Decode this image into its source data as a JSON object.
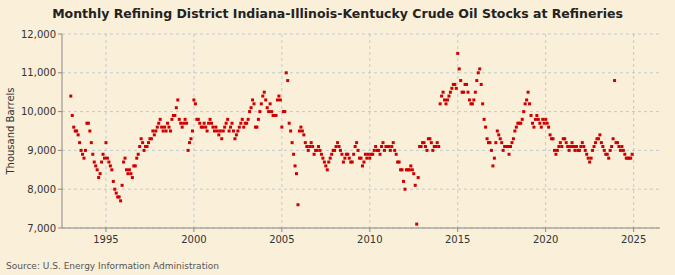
{
  "chart_data": {
    "type": "scatter",
    "title": "Monthly Refining District Indiana-Illinois-Kentucky Crude Oil Stocks at Refineries",
    "y_label": "Thousand Barrels",
    "source": "Source: U.S. Energy Information Administration",
    "xlim": [
      1992.5,
      2026.5
    ],
    "ylim": [
      7000,
      12000
    ],
    "xticks": [
      1995,
      2000,
      2005,
      2010,
      2015,
      2020,
      2025
    ],
    "yticks": [
      {
        "value": 7000,
        "label": "7,000"
      },
      {
        "value": 8000,
        "label": "8,000"
      },
      {
        "value": 9000,
        "label": "9,000"
      },
      {
        "value": 10000,
        "label": "10,000"
      },
      {
        "value": 11000,
        "label": "11,000"
      },
      {
        "value": 12000,
        "label": "12,000"
      }
    ],
    "grid": true,
    "color": "#cc0000",
    "marker": "square",
    "x": [
      1993.0,
      1993.083,
      1993.167,
      1993.25,
      1993.333,
      1993.417,
      1993.5,
      1993.583,
      1993.667,
      1993.75,
      1993.833,
      1993.917,
      1994.0,
      1994.083,
      1994.167,
      1994.25,
      1994.333,
      1994.417,
      1994.5,
      1994.583,
      1994.667,
      1994.75,
      1994.833,
      1994.917,
      1995.0,
      1995.083,
      1995.167,
      1995.25,
      1995.333,
      1995.417,
      1995.5,
      1995.583,
      1995.667,
      1995.75,
      1995.833,
      1995.917,
      1996.0,
      1996.083,
      1996.167,
      1996.25,
      1996.333,
      1996.417,
      1996.5,
      1996.583,
      1996.667,
      1996.75,
      1996.833,
      1996.917,
      1997.0,
      1997.083,
      1997.167,
      1997.25,
      1997.333,
      1997.417,
      1997.5,
      1997.583,
      1997.667,
      1997.75,
      1997.833,
      1997.917,
      1998.0,
      1998.083,
      1998.167,
      1998.25,
      1998.333,
      1998.417,
      1998.5,
      1998.583,
      1998.667,
      1998.75,
      1998.833,
      1998.917,
      1999.0,
      1999.083,
      1999.167,
      1999.25,
      1999.333,
      1999.417,
      1999.5,
      1999.583,
      1999.667,
      1999.75,
      1999.833,
      1999.917,
      2000.0,
      2000.083,
      2000.167,
      2000.25,
      2000.333,
      2000.417,
      2000.5,
      2000.583,
      2000.667,
      2000.75,
      2000.833,
      2000.917,
      2001.0,
      2001.083,
      2001.167,
      2001.25,
      2001.333,
      2001.417,
      2001.5,
      2001.583,
      2001.667,
      2001.75,
      2001.833,
      2001.917,
      2002.0,
      2002.083,
      2002.167,
      2002.25,
      2002.333,
      2002.417,
      2002.5,
      2002.583,
      2002.667,
      2002.75,
      2002.833,
      2002.917,
      2003.0,
      2003.083,
      2003.167,
      2003.25,
      2003.333,
      2003.417,
      2003.5,
      2003.583,
      2003.667,
      2003.75,
      2003.833,
      2003.917,
      2004.0,
      2004.083,
      2004.167,
      2004.25,
      2004.333,
      2004.417,
      2004.5,
      2004.583,
      2004.667,
      2004.75,
      2004.833,
      2004.917,
      2005.0,
      2005.083,
      2005.167,
      2005.25,
      2005.333,
      2005.417,
      2005.5,
      2005.583,
      2005.667,
      2005.75,
      2005.833,
      2005.917,
      2006.0,
      2006.083,
      2006.167,
      2006.25,
      2006.333,
      2006.417,
      2006.5,
      2006.583,
      2006.667,
      2006.75,
      2006.833,
      2006.917,
      2007.0,
      2007.083,
      2007.167,
      2007.25,
      2007.333,
      2007.417,
      2007.5,
      2007.583,
      2007.667,
      2007.75,
      2007.833,
      2007.917,
      2008.0,
      2008.083,
      2008.167,
      2008.25,
      2008.333,
      2008.417,
      2008.5,
      2008.583,
      2008.667,
      2008.75,
      2008.833,
      2008.917,
      2009.0,
      2009.083,
      2009.167,
      2009.25,
      2009.333,
      2009.417,
      2009.5,
      2009.583,
      2009.667,
      2009.75,
      2009.833,
      2009.917,
      2010.0,
      2010.083,
      2010.167,
      2010.25,
      2010.333,
      2010.417,
      2010.5,
      2010.583,
      2010.667,
      2010.75,
      2010.833,
      2010.917,
      2011.0,
      2011.083,
      2011.167,
      2011.25,
      2011.333,
      2011.417,
      2011.5,
      2011.583,
      2011.667,
      2011.75,
      2011.833,
      2011.917,
      2012.0,
      2012.083,
      2012.167,
      2012.25,
      2012.333,
      2012.417,
      2012.5,
      2012.583,
      2012.667,
      2012.75,
      2012.833,
      2012.917,
      2013.0,
      2013.083,
      2013.167,
      2013.25,
      2013.333,
      2013.417,
      2013.5,
      2013.583,
      2013.667,
      2013.75,
      2013.833,
      2013.917,
      2014.0,
      2014.083,
      2014.167,
      2014.25,
      2014.333,
      2014.417,
      2014.5,
      2014.583,
      2014.667,
      2014.75,
      2014.833,
      2014.917,
      2015.0,
      2015.083,
      2015.167,
      2015.25,
      2015.333,
      2015.417,
      2015.5,
      2015.583,
      2015.667,
      2015.75,
      2015.833,
      2015.917,
      2016.0,
      2016.083,
      2016.167,
      2016.25,
      2016.333,
      2016.417,
      2016.5,
      2016.583,
      2016.667,
      2016.75,
      2016.833,
      2016.917,
      2017.0,
      2017.083,
      2017.167,
      2017.25,
      2017.333,
      2017.417,
      2017.5,
      2017.583,
      2017.667,
      2017.75,
      2017.833,
      2017.917,
      2018.0,
      2018.083,
      2018.167,
      2018.25,
      2018.333,
      2018.417,
      2018.5,
      2018.583,
      2018.667,
      2018.75,
      2018.833,
      2018.917,
      2019.0,
      2019.083,
      2019.167,
      2019.25,
      2019.333,
      2019.417,
      2019.5,
      2019.583,
      2019.667,
      2019.75,
      2019.833,
      2019.917,
      2020.0,
      2020.083,
      2020.167,
      2020.25,
      2020.333,
      2020.417,
      2020.5,
      2020.583,
      2020.667,
      2020.75,
      2020.833,
      2020.917,
      2021.0,
      2021.083,
      2021.167,
      2021.25,
      2021.333,
      2021.417,
      2021.5,
      2021.583,
      2021.667,
      2021.75,
      2021.833,
      2021.917,
      2022.0,
      2022.083,
      2022.167,
      2022.25,
      2022.333,
      2022.417,
      2022.5,
      2022.583,
      2022.667,
      2022.75,
      2022.833,
      2022.917,
      2023.0,
      2023.083,
      2023.167,
      2023.25,
      2023.333,
      2023.417,
      2023.5,
      2023.583,
      2023.667,
      2023.75,
      2023.833,
      2023.917,
      2024.0,
      2024.083,
      2024.167,
      2024.25,
      2024.333,
      2024.417,
      2024.5,
      2024.583,
      2024.667,
      2024.75,
      2024.833,
      2024.917
    ],
    "values": [
      10400,
      9900,
      9600,
      9500,
      9500,
      9400,
      9200,
      9000,
      8900,
      8800,
      9000,
      9700,
      9700,
      9500,
      9200,
      8900,
      8700,
      8600,
      8500,
      8300,
      8400,
      8700,
      8900,
      8800,
      9200,
      8800,
      8700,
      8600,
      8500,
      8200,
      8000,
      7900,
      7800,
      7800,
      7700,
      8100,
      8700,
      8800,
      8500,
      8400,
      8500,
      8400,
      8300,
      8600,
      8600,
      8800,
      8900,
      9100,
      9300,
      9200,
      9000,
      9100,
      9100,
      9200,
      9300,
      9300,
      9500,
      9400,
      9500,
      9600,
      9700,
      9800,
      9600,
      9500,
      9600,
      9500,
      9700,
      9600,
      9500,
      9800,
      9900,
      9900,
      10100,
      10300,
      9800,
      9700,
      9600,
      9700,
      9800,
      9700,
      9000,
      9200,
      9300,
      9500,
      10300,
      10200,
      9800,
      9800,
      9700,
      9600,
      9600,
      9700,
      9600,
      9500,
      9700,
      9800,
      9700,
      9600,
      9500,
      9600,
      9500,
      9400,
      9500,
      9300,
      9500,
      9600,
      9700,
      9800,
      9500,
      9600,
      9700,
      9500,
      9300,
      9400,
      9500,
      9600,
      9700,
      9800,
      9600,
      9700,
      9700,
      9800,
      10000,
      10100,
      10300,
      10200,
      9600,
      9600,
      9800,
      10000,
      10200,
      10400,
      10500,
      10300,
      10100,
      10000,
      10200,
      10000,
      9900,
      9900,
      9900,
      10300,
      10400,
      10300,
      9600,
      10000,
      10000,
      11000,
      10800,
      9700,
      9500,
      9200,
      8900,
      8600,
      8400,
      7600,
      9500,
      9600,
      9500,
      9400,
      9200,
      9100,
      9000,
      9100,
      9200,
      9100,
      8900,
      9000,
      9000,
      9100,
      9000,
      8900,
      8800,
      8700,
      8600,
      8500,
      8700,
      8800,
      8900,
      9000,
      9000,
      9100,
      9200,
      9100,
      9000,
      8900,
      8700,
      8800,
      8900,
      8900,
      8800,
      8700,
      8700,
      8900,
      9100,
      9200,
      9000,
      8800,
      8800,
      8600,
      8700,
      8900,
      8800,
      8900,
      8800,
      8900,
      8900,
      9000,
      9100,
      9000,
      9000,
      8900,
      9100,
      9200,
      9000,
      9100,
      9100,
      9100,
      9000,
      9100,
      9200,
      9000,
      8900,
      8700,
      8700,
      8500,
      8500,
      8200,
      8000,
      8500,
      8500,
      8500,
      8600,
      8500,
      8400,
      8100,
      7100,
      8300,
      9100,
      9100,
      9200,
      9200,
      9100,
      9000,
      9300,
      9300,
      9200,
      9000,
      9100,
      9100,
      9200,
      9100,
      10200,
      10400,
      10500,
      10300,
      10200,
      10300,
      10400,
      10500,
      10600,
      10700,
      10700,
      10600,
      11500,
      11100,
      10800,
      10500,
      10500,
      10700,
      10700,
      10500,
      10300,
      10200,
      10200,
      10300,
      10500,
      10800,
      11000,
      11100,
      10700,
      10200,
      9800,
      9600,
      9300,
      9200,
      9200,
      9000,
      8600,
      8800,
      9200,
      9500,
      9400,
      9300,
      9200,
      9000,
      9100,
      9100,
      9100,
      8900,
      9100,
      9200,
      9300,
      9500,
      9600,
      9700,
      9700,
      9700,
      9800,
      10000,
      10200,
      10300,
      10500,
      10200,
      9900,
      9700,
      9600,
      9800,
      9900,
      9800,
      9700,
      9600,
      9800,
      9700,
      9800,
      9700,
      9600,
      9400,
      9300,
      9300,
      9000,
      8900,
      9000,
      9100,
      9200,
      9100,
      9300,
      9300,
      9200,
      9100,
      9000,
      9100,
      9200,
      9100,
      9000,
      9100,
      9000,
      9000,
      9100,
      9200,
      9100,
      9000,
      8900,
      8800,
      8700,
      8800,
      9000,
      9100,
      9200,
      9300,
      9300,
      9400,
      9200,
      9100,
      9000,
      8900,
      8900,
      8800,
      9000,
      9100,
      9300,
      10800,
      9200,
      9200,
      9100,
      9000,
      9100,
      9000,
      8900,
      8800,
      8800,
      8800,
      8800,
      8900
    ]
  }
}
